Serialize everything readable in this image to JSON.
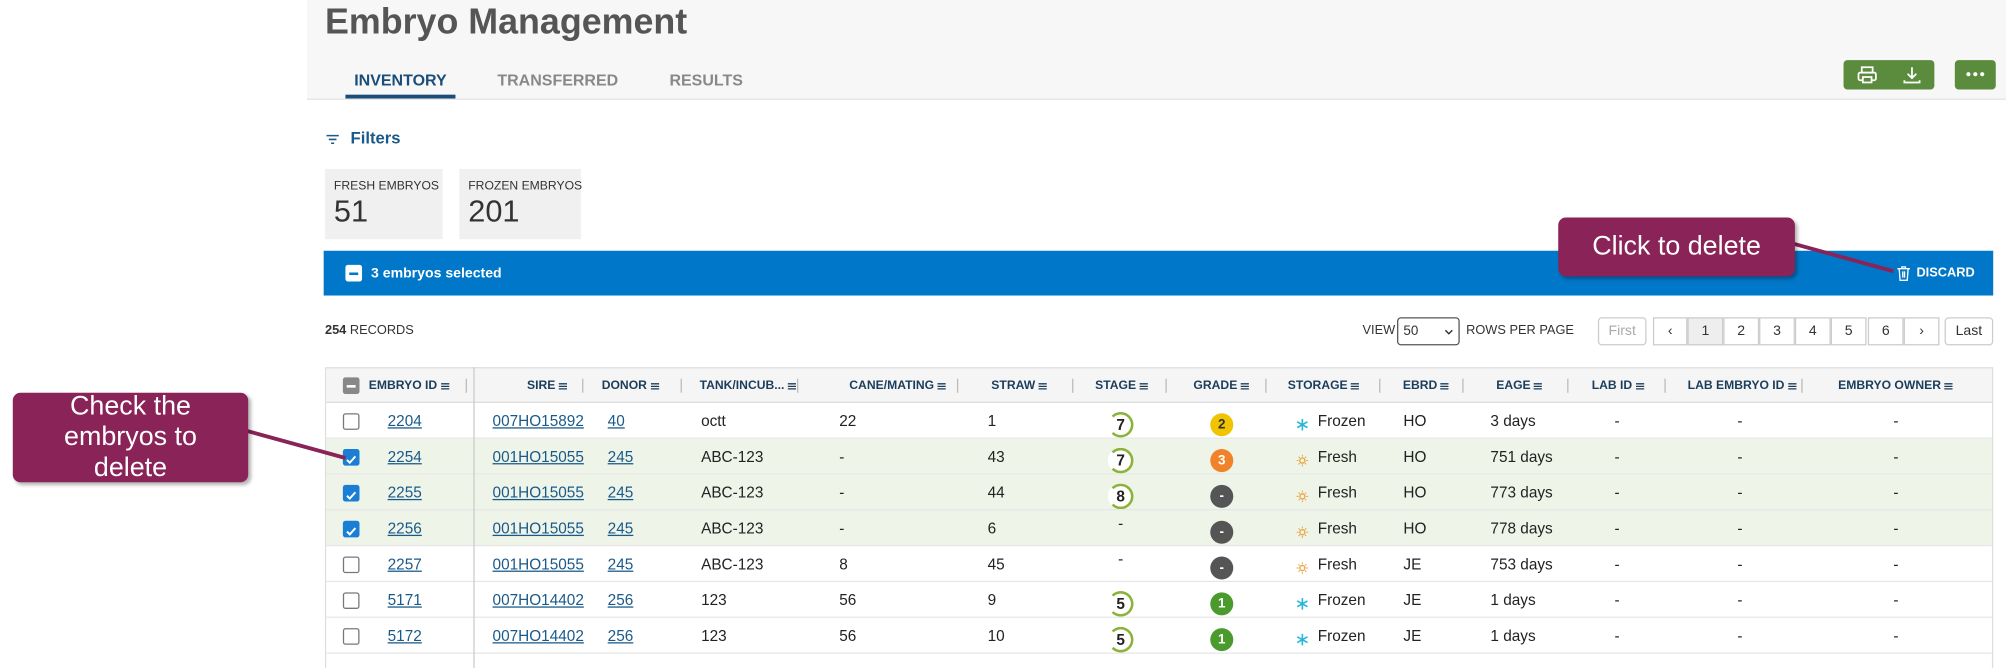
{
  "header": {
    "title": "Embryo Management"
  },
  "tabs": [
    "INVENTORY",
    "TRANSFERRED",
    "RESULTS"
  ],
  "filters": "Filters",
  "summary": [
    {
      "label": "FRESH EMBRYOS",
      "value": "51"
    },
    {
      "label": "FROZEN EMBRYOS",
      "value": "201"
    }
  ],
  "selection": {
    "text": "3 embryos selected",
    "action": "DISCARD"
  },
  "records": {
    "count": "254",
    "label": "RECORDS"
  },
  "pagination": {
    "view": "VIEW",
    "rows_per_page": "50",
    "suffix": "ROWS PER PAGE",
    "pages": [
      "First",
      "‹",
      "1",
      "2",
      "3",
      "4",
      "5",
      "6",
      "›",
      "Last"
    ]
  },
  "table": {
    "columns": [
      "EMBRYO ID",
      "SIRE",
      "DONOR",
      "TANK/INCUB...",
      "CANE/MATING",
      "STRAW",
      "STAGE",
      "GRADE",
      "STORAGE",
      "EBRD",
      "EAGE",
      "LAB ID",
      "LAB EMBRYO ID",
      "EMBRYO OWNER"
    ],
    "rows": [
      {
        "selected": false,
        "cells": [
          "2204",
          "007HO15892",
          "40",
          "octt",
          "22",
          "1",
          "7",
          "2",
          "Frozen",
          "HO",
          "3 days",
          "-",
          "-",
          "-"
        ]
      },
      {
        "selected": true,
        "cells": [
          "2254",
          "001HO15055",
          "245",
          "ABC-123",
          "-",
          "43",
          "7",
          "3",
          "Fresh",
          "HO",
          "751 days",
          "-",
          "-",
          "-"
        ]
      },
      {
        "selected": true,
        "cells": [
          "2255",
          "001HO15055",
          "245",
          "ABC-123",
          "-",
          "44",
          "8",
          "-",
          "Fresh",
          "HO",
          "773 days",
          "-",
          "-",
          "-"
        ]
      },
      {
        "selected": true,
        "cells": [
          "2256",
          "001HO15055",
          "245",
          "ABC-123",
          "-",
          "6",
          "-",
          "-",
          "Fresh",
          "HO",
          "778 days",
          "-",
          "-",
          "-"
        ]
      },
      {
        "selected": false,
        "cells": [
          "2257",
          "001HO15055",
          "245",
          "ABC-123",
          "8",
          "45",
          "-",
          "-",
          "Fresh",
          "JE",
          "753 days",
          "-",
          "-",
          "-"
        ]
      },
      {
        "selected": false,
        "cells": [
          "5171",
          "007HO14402",
          "256",
          "123",
          "56",
          "9",
          "5",
          "1",
          "Frozen",
          "JE",
          "1 days",
          "-",
          "-",
          "-"
        ]
      },
      {
        "selected": false,
        "cells": [
          "5172",
          "007HO14402",
          "256",
          "123",
          "56",
          "10",
          "5",
          "1",
          "Frozen",
          "JE",
          "1 days",
          "-",
          "-",
          "-"
        ]
      }
    ]
  },
  "callouts": [
    "Click to delete",
    "Check the embryos to delete"
  ]
}
